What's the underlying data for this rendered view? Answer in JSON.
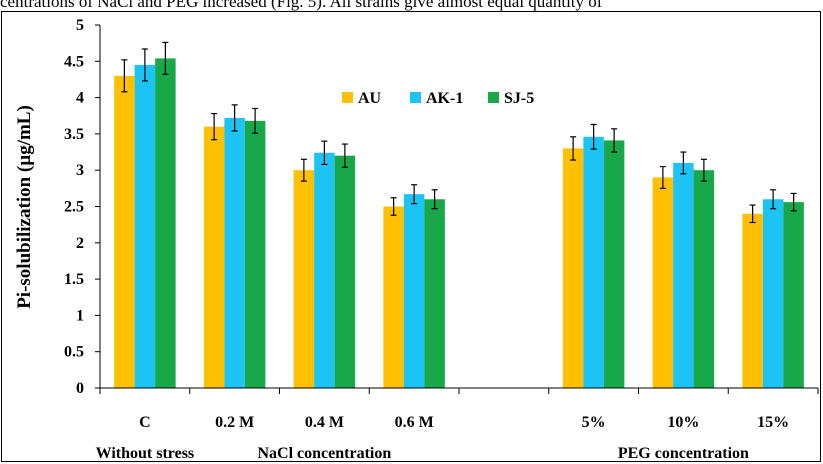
{
  "caption_fragment": "centrations of NaCl and PEG increased (Fig. 5). All strains give almost equal quantity of",
  "chart_data": {
    "type": "bar",
    "ylabel": "Pi-solubilization (µg/mL)",
    "xlabel": "",
    "ylim": [
      0,
      5
    ],
    "yticks": [
      "0",
      "0.5",
      "1",
      "1.5",
      "2",
      "2.5",
      "3",
      "3.5",
      "4",
      "4.5",
      "5"
    ],
    "grid": false,
    "legend_position": "top-center",
    "categories": [
      "C",
      "0.2 M",
      "0.4 M",
      "0.6 M",
      "",
      "5%",
      "10%",
      "15%"
    ],
    "group_labels": [
      {
        "label": "Without stress",
        "under": 0
      },
      {
        "label": "NaCl concentration",
        "under": 2
      },
      {
        "label": "PEG concentration",
        "under": 6
      }
    ],
    "series": [
      {
        "name": "AU",
        "color": "#FFC000",
        "values": [
          4.3,
          3.6,
          3.0,
          2.5,
          null,
          3.3,
          2.9,
          2.4
        ],
        "errors": [
          0.22,
          0.18,
          0.15,
          0.12,
          null,
          0.16,
          0.15,
          0.12
        ]
      },
      {
        "name": "AK-1",
        "color": "#1CC4F5",
        "values": [
          4.45,
          3.72,
          3.24,
          2.67,
          null,
          3.46,
          3.1,
          2.6
        ],
        "errors": [
          0.22,
          0.18,
          0.16,
          0.13,
          null,
          0.17,
          0.15,
          0.13
        ]
      },
      {
        "name": "SJ-5",
        "color": "#18A84A",
        "values": [
          4.54,
          3.68,
          3.2,
          2.6,
          null,
          3.41,
          3.0,
          2.56
        ],
        "errors": [
          0.22,
          0.17,
          0.16,
          0.13,
          null,
          0.16,
          0.15,
          0.12
        ]
      }
    ]
  }
}
